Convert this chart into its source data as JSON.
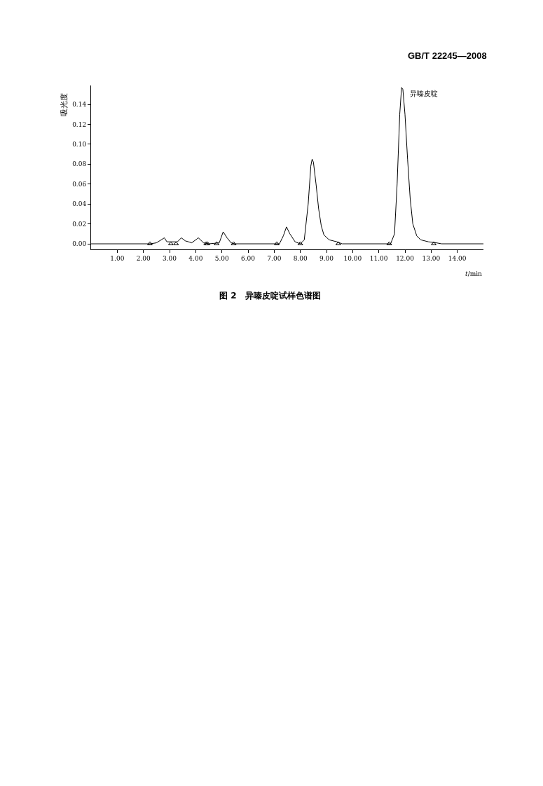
{
  "chart_data": {
    "type": "line",
    "title": "图 2　异嗪皮啶试样色谱图",
    "subtitle": "GB/T 22245—2008",
    "xlabel": "t/min",
    "ylabel": "吸光度",
    "annotations": [
      {
        "text": "异嗪皮啶",
        "x": 11.87,
        "y": 0.156
      }
    ],
    "xlim": [
      0,
      15
    ],
    "ylim": [
      -0.0056,
      0.159
    ],
    "xticks": [
      {
        "value": 1,
        "label": "1.00"
      },
      {
        "value": 2,
        "label": "2.00"
      },
      {
        "value": 3,
        "label": "3.00"
      },
      {
        "value": 4,
        "label": "4.00"
      },
      {
        "value": 5,
        "label": "5.00"
      },
      {
        "value": 6,
        "label": "6.00"
      },
      {
        "value": 7,
        "label": "7.00"
      },
      {
        "value": 8,
        "label": "8.00"
      },
      {
        "value": 9,
        "label": "9.00"
      },
      {
        "value": 10,
        "label": "10.00"
      },
      {
        "value": 11,
        "label": "11.00"
      },
      {
        "value": 12,
        "label": "12.00"
      },
      {
        "value": 13,
        "label": "13.00"
      },
      {
        "value": 14,
        "label": "14.00"
      }
    ],
    "yticks": [
      {
        "value": 0,
        "label": "0.00"
      },
      0.02,
      0.04,
      0.06,
      0.08,
      {
        "value": 0.1,
        "label": "0.10"
      },
      0.12,
      0.14
    ],
    "series": [
      {
        "color": "#000000",
        "marker": "none",
        "line_style": "solid",
        "x": [
          0,
          2.25,
          2.5,
          2.8,
          2.9,
          3.3,
          3.45,
          3.6,
          3.85,
          4.1,
          4.3,
          4.5,
          4.9,
          5.05,
          5.2,
          5.35,
          5.5,
          7.2,
          7.35,
          7.47,
          7.6,
          7.8,
          8.0,
          8.15,
          8.3,
          8.4,
          8.45,
          8.5,
          8.6,
          8.7,
          8.8,
          8.9,
          9.1,
          9.4,
          9.6,
          11.45,
          11.6,
          11.7,
          11.8,
          11.87,
          11.92,
          12.0,
          12.1,
          12.2,
          12.3,
          12.45,
          12.6,
          12.9,
          13.2,
          13.4,
          15.0
        ],
        "values": [
          0,
          0,
          0.001,
          0.006,
          0.002,
          0.002,
          0.006,
          0.003,
          0.001,
          0.006,
          0.001,
          0,
          0.001,
          0.012,
          0.006,
          0.001,
          0,
          0,
          0.008,
          0.017,
          0.01,
          0.002,
          0,
          0.004,
          0.04,
          0.078,
          0.085,
          0.082,
          0.06,
          0.035,
          0.018,
          0.009,
          0.004,
          0.002,
          0,
          0,
          0.01,
          0.06,
          0.13,
          0.157,
          0.155,
          0.13,
          0.085,
          0.045,
          0.02,
          0.008,
          0.004,
          0.002,
          0.001,
          0,
          0
        ]
      },
      {
        "type": "scatter",
        "color": "#000000",
        "marker": "triangle",
        "x": [
          2.25,
          3.05,
          3.25,
          4.4,
          4.45,
          4.8,
          5.45,
          7.1,
          8.0,
          9.45,
          11.4,
          13.1
        ],
        "values": [
          0,
          0,
          0,
          0,
          0,
          0,
          0,
          0,
          0,
          0,
          0,
          0
        ]
      }
    ]
  }
}
